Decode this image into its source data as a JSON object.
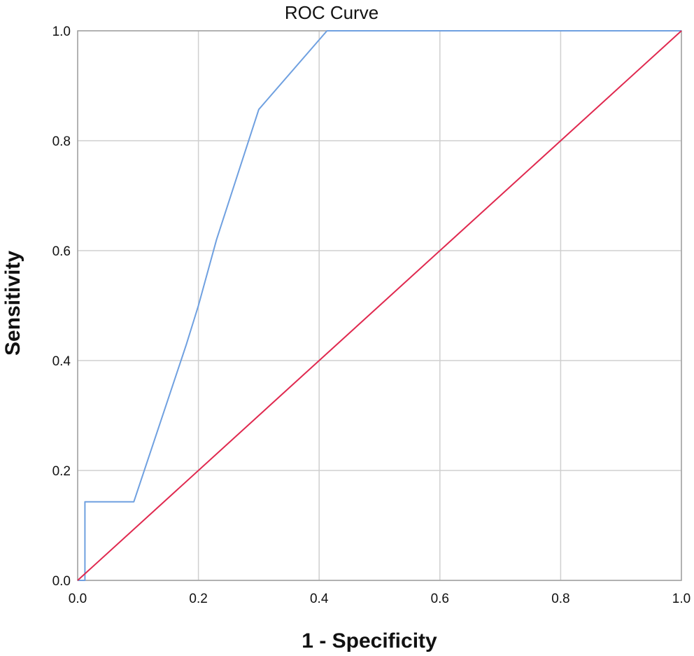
{
  "chart_data": {
    "type": "line",
    "title": "ROC Curve",
    "xlabel": "1 - Specificity",
    "ylabel": "Sensitivity",
    "xlim": [
      0,
      1
    ],
    "ylim": [
      0,
      1
    ],
    "x_ticks": [
      "0.0",
      "0.2",
      "0.4",
      "0.6",
      "0.8",
      "1.0"
    ],
    "y_ticks": [
      "0.0",
      "0.2",
      "0.4",
      "0.6",
      "0.8",
      "1.0"
    ],
    "grid": true,
    "series": [
      {
        "color": "#6fa0e0",
        "x": [
          0.0,
          0.012,
          0.012,
          0.093,
          0.18,
          0.2,
          0.23,
          0.3,
          0.413,
          1.0
        ],
        "y": [
          0.0,
          0.0,
          0.143,
          0.143,
          0.429,
          0.5,
          0.62,
          0.857,
          1.0,
          1.0
        ]
      },
      {
        "color": "#e0294f",
        "x": [
          0.0,
          1.0
        ],
        "y": [
          0.0,
          1.0
        ]
      }
    ]
  }
}
